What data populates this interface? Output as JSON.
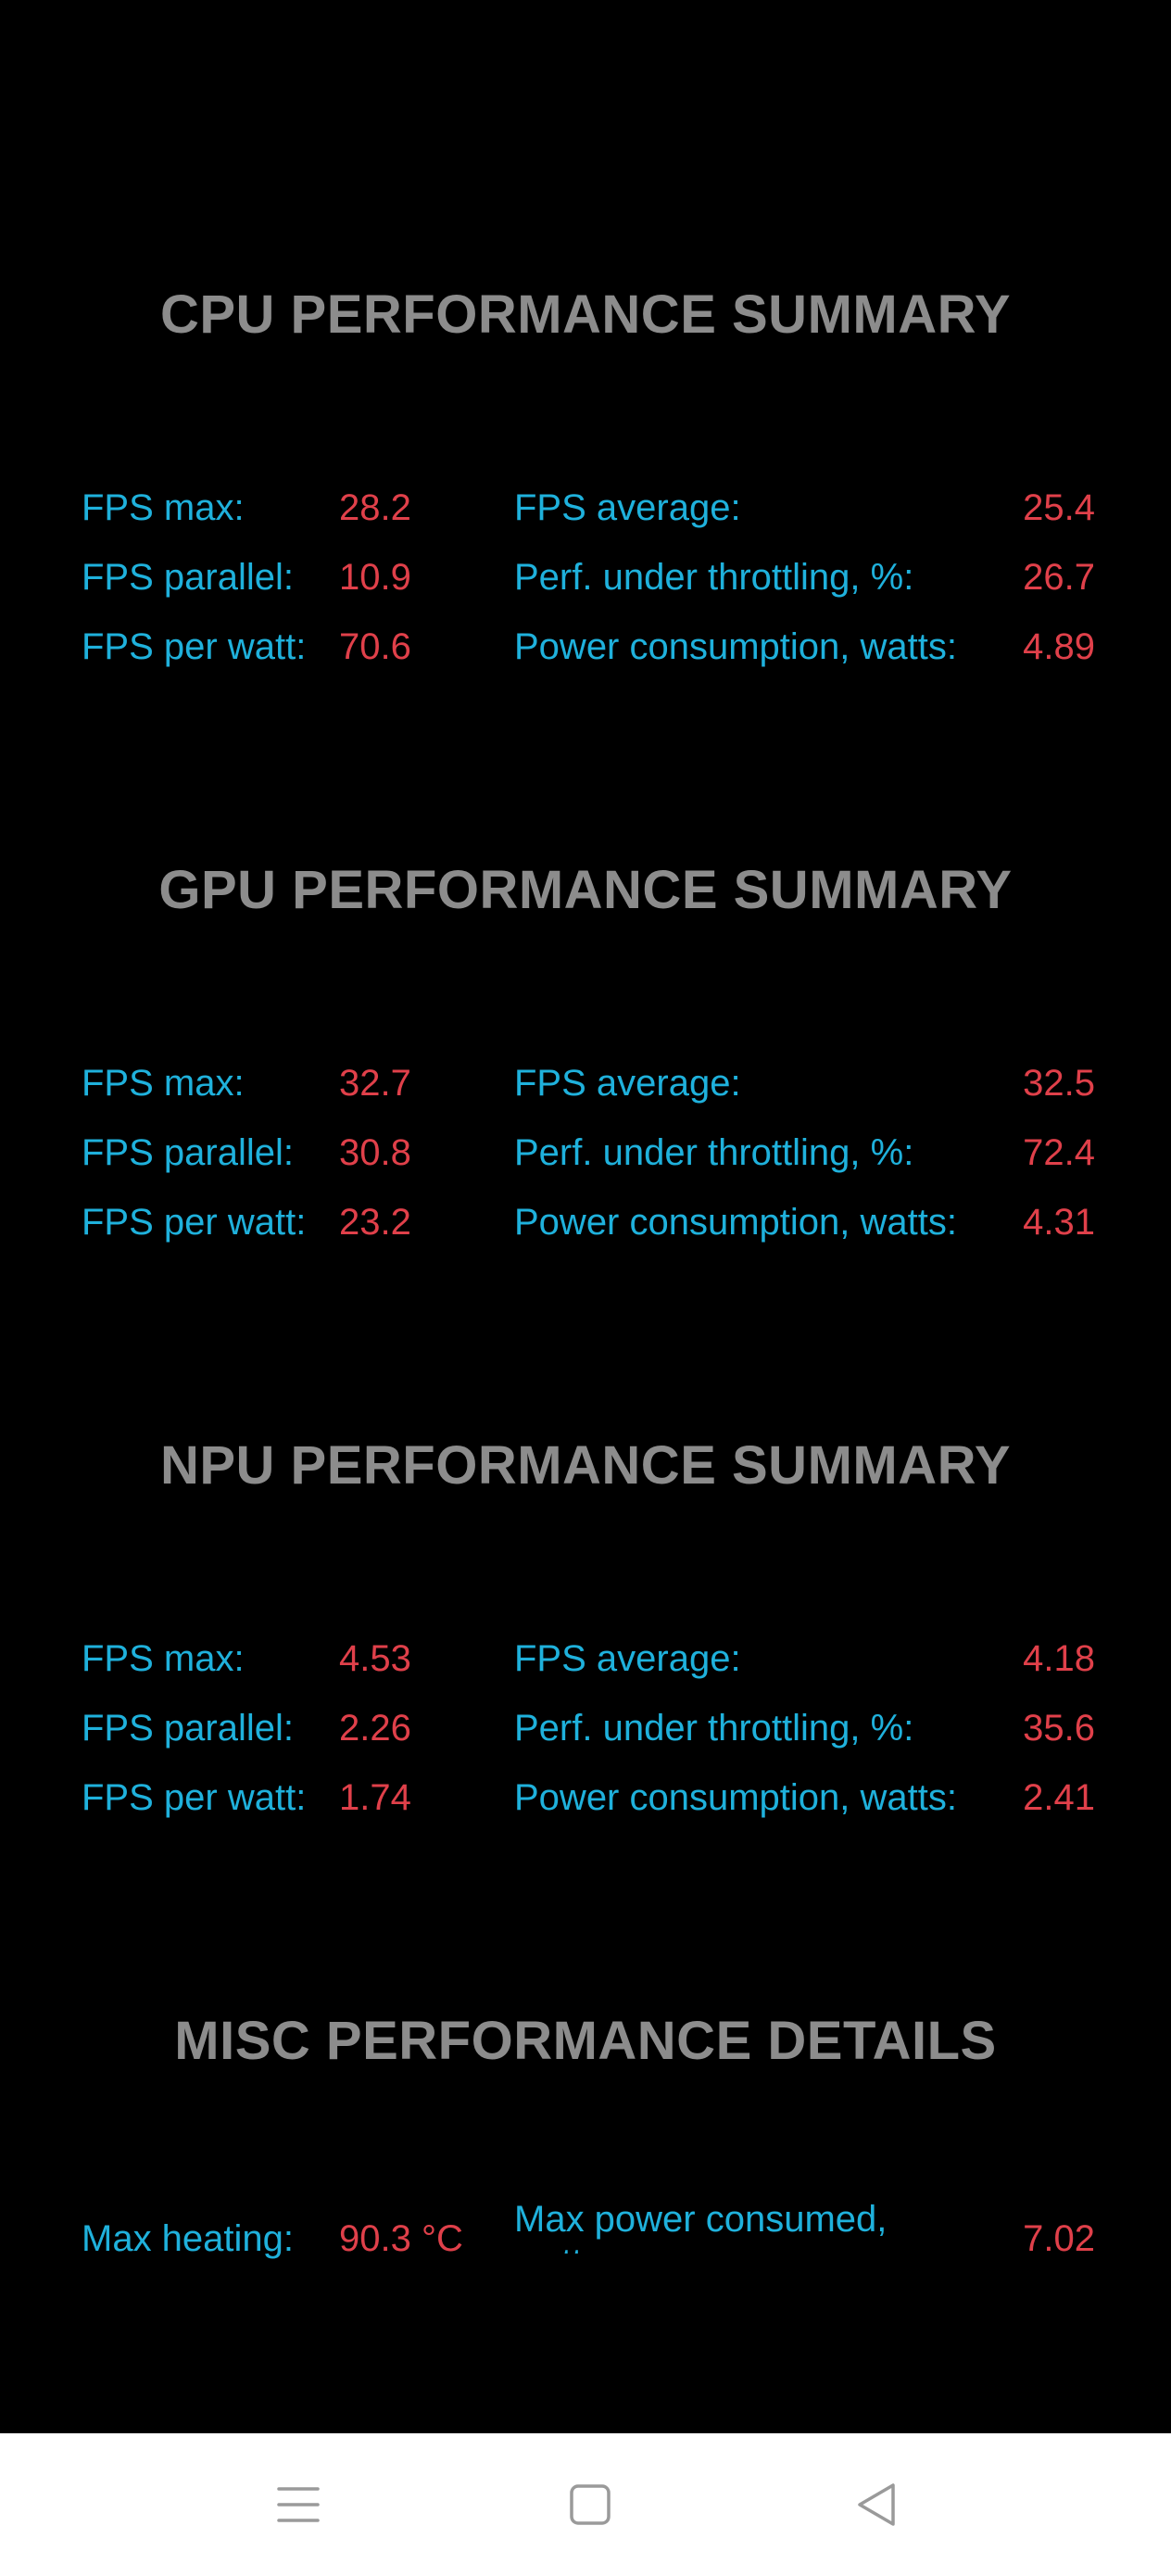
{
  "sections": [
    {
      "title": "CPU PERFORMANCE SUMMARY",
      "rows": [
        {
          "l_label": "FPS max:",
          "l_value": "28.2",
          "r_label": "FPS average:",
          "r_value": "25.4"
        },
        {
          "l_label": "FPS parallel:",
          "l_value": "10.9",
          "r_label": "Perf. under throttling, %:",
          "r_value": "26.7"
        },
        {
          "l_label": "FPS per watt:",
          "l_value": "70.6",
          "r_label": "Power consumption, watts:",
          "r_value": "4.89"
        }
      ]
    },
    {
      "title": "GPU PERFORMANCE SUMMARY",
      "rows": [
        {
          "l_label": "FPS max:",
          "l_value": "32.7",
          "r_label": "FPS average:",
          "r_value": "32.5"
        },
        {
          "l_label": "FPS parallel:",
          "l_value": "30.8",
          "r_label": "Perf. under throttling, %:",
          "r_value": "72.4"
        },
        {
          "l_label": "FPS per watt:",
          "l_value": "23.2",
          "r_label": "Power consumption, watts:",
          "r_value": "4.31"
        }
      ]
    },
    {
      "title": "NPU PERFORMANCE SUMMARY",
      "rows": [
        {
          "l_label": "FPS max:",
          "l_value": "4.53",
          "r_label": "FPS average:",
          "r_value": "4.18"
        },
        {
          "l_label": "FPS parallel:",
          "l_value": "2.26",
          "r_label": "Perf. under throttling, %:",
          "r_value": "35.6"
        },
        {
          "l_label": "FPS per watt:",
          "l_value": "1.74",
          "r_label": "Power consumption, watts:",
          "r_value": "2.41"
        }
      ]
    }
  ],
  "misc": {
    "title": "MISC PERFORMANCE DETAILS",
    "max_heating_label": "Max heating:",
    "max_heating_value": "90.3 °C",
    "max_power_label": "Max power consumed, watts:",
    "max_power_value": "7.02"
  },
  "navbar": {
    "icons": [
      "menu-icon",
      "home-square-icon",
      "back-triangle-icon"
    ]
  },
  "colors": {
    "background": "#000000",
    "title": "#8c8c8c",
    "label": "#1fb1dc",
    "value": "#e0404a",
    "navbar": "#ffffff"
  }
}
